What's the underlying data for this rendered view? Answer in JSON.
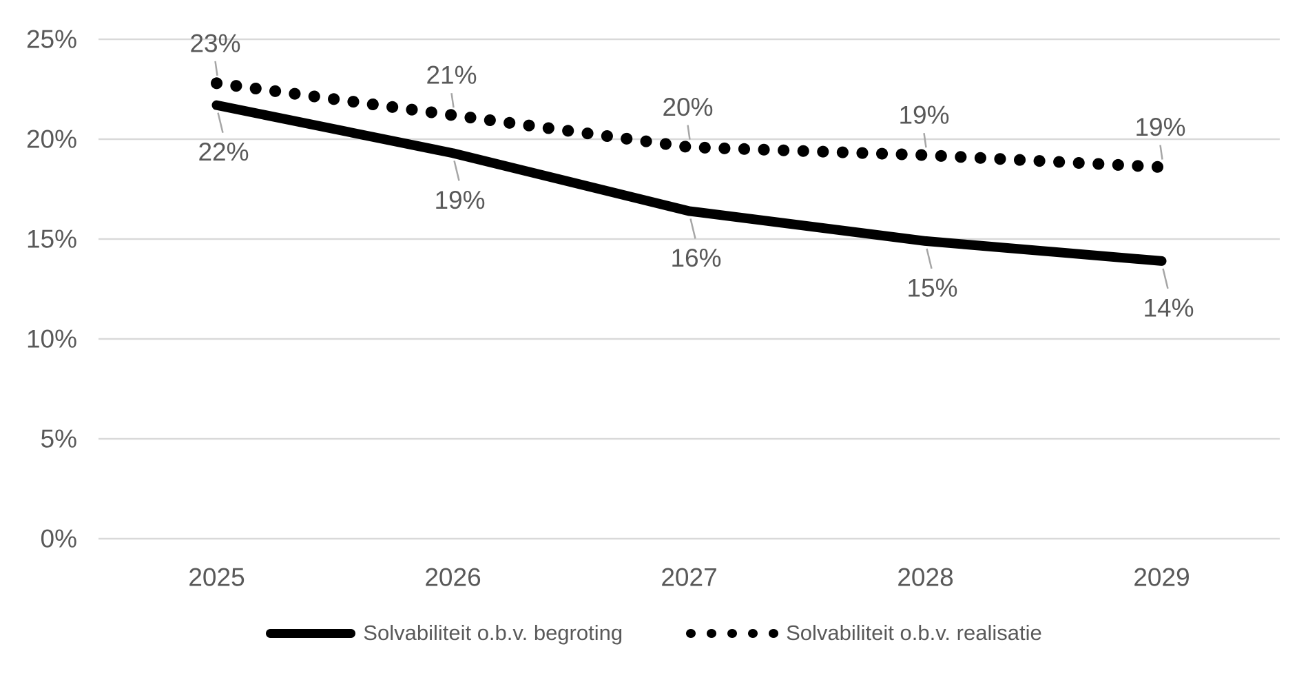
{
  "chart_data": {
    "type": "line",
    "x": [
      "2025",
      "2026",
      "2027",
      "2028",
      "2029"
    ],
    "series": [
      {
        "name": "Solvabiliteit o.b.v. begroting",
        "style": "solid",
        "color": "#000000",
        "values": [
          21.7,
          19.3,
          16.4,
          14.9,
          13.9
        ],
        "point_labels": [
          "22%",
          "19%",
          "16%",
          "15%",
          "14%"
        ],
        "label_position": "below"
      },
      {
        "name": "Solvabiliteit o.b.v. realisatie",
        "style": "dotted",
        "color": "#000000",
        "values": [
          22.8,
          21.2,
          19.6,
          19.2,
          18.6
        ],
        "point_labels": [
          "23%",
          "21%",
          "20%",
          "19%",
          "19%"
        ],
        "label_position": "above"
      }
    ],
    "title": "",
    "xlabel": "",
    "ylabel": "",
    "ylim": [
      0,
      25
    ],
    "y_ticks": [
      "25%",
      "20%",
      "15%",
      "10%",
      "5%",
      "0%"
    ],
    "y_tick_values": [
      25,
      20,
      15,
      10,
      5,
      0
    ],
    "grid": "horizontal",
    "legend_position": "bottom",
    "colors": {
      "series": "#000000",
      "axis_text": "#595959",
      "data_label_text": "#595959",
      "gridline": "#d9d9d9",
      "leader_line": "#a6a6a6",
      "background": "#ffffff"
    }
  },
  "legend": {
    "items": [
      {
        "label": "Solvabiliteit o.b.v. begroting",
        "marker": "solid-line"
      },
      {
        "label": "Solvabiliteit o.b.v. realisatie",
        "marker": "dotted-line"
      }
    ]
  }
}
